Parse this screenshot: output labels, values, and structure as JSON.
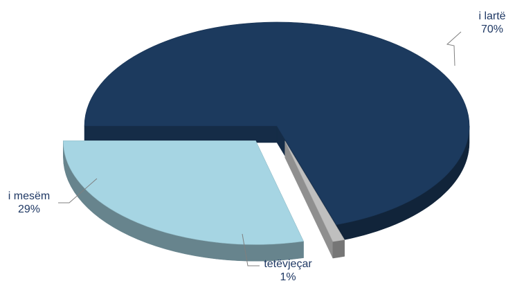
{
  "chart_data": {
    "type": "pie",
    "style": "3d-exploded",
    "slices": [
      {
        "label": "i lartë",
        "value": 70,
        "value_label": "70%",
        "color": "#1c3a5e"
      },
      {
        "label": "tetëvjeçar",
        "value": 1,
        "value_label": "1%",
        "color": "#bfbfbf"
      },
      {
        "label": "i mesëm",
        "value": 29,
        "value_label": "29%",
        "color": "#a6d5e3"
      }
    ],
    "label_color": "#1f3864",
    "legend": "none"
  }
}
